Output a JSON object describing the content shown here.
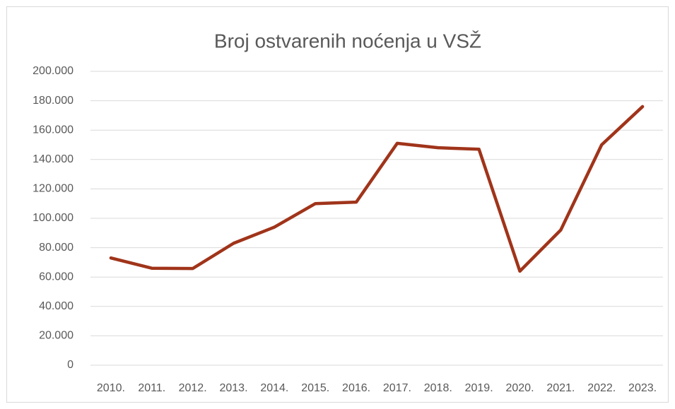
{
  "chart_data": {
    "type": "line",
    "title": "Broj ostvarenih noćenja u VSŽ",
    "categories": [
      "2010.",
      "2011.",
      "2012.",
      "2013.",
      "2014.",
      "2015.",
      "2016.",
      "2017.",
      "2018.",
      "2019.",
      "2020.",
      "2021.",
      "2022.",
      "2023."
    ],
    "values": [
      73000,
      66000,
      65800,
      83000,
      94000,
      110000,
      111000,
      151000,
      148000,
      147000,
      64000,
      92000,
      150000,
      176000
    ],
    "color": "#a0341a",
    "ylim": [
      0,
      200000
    ],
    "yticks": [
      0,
      {
        "value": 20000,
        "label": "20.000"
      },
      {
        "value": 40000,
        "label": "40.000"
      },
      {
        "value": 60000,
        "label": "60.000"
      },
      {
        "value": 80000,
        "label": "80.000"
      },
      {
        "value": 100000,
        "label": "100.000"
      },
      {
        "value": 120000,
        "label": "120.000"
      },
      {
        "value": 140000,
        "label": "140.000"
      },
      {
        "value": 160000,
        "label": "160.000"
      },
      {
        "value": 180000,
        "label": "180.000"
      },
      {
        "value": 200000,
        "label": "200.000"
      }
    ],
    "grid": true
  }
}
